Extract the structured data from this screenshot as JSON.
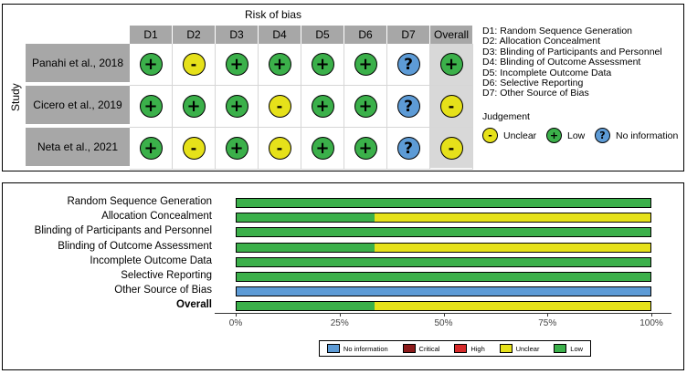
{
  "colors": {
    "low": "#3bb04a",
    "unclear": "#e6e11a",
    "no_information": "#5d9bd6",
    "high": "#d62a2a",
    "critical": "#8c1a1a",
    "header_gray": "#a7a7a7"
  },
  "traffic_light": {
    "title": "Risk of bias",
    "row_axis_label": "Study",
    "columns": [
      "D1",
      "D2",
      "D3",
      "D4",
      "D5",
      "D6",
      "D7",
      "Overall"
    ],
    "studies": [
      {
        "name": "Panahi et al., 2018",
        "judgements": [
          "low",
          "unclear",
          "low",
          "low",
          "low",
          "low",
          "no_information",
          "low"
        ]
      },
      {
        "name": "Cicero et al., 2019",
        "judgements": [
          "low",
          "low",
          "low",
          "unclear",
          "low",
          "low",
          "no_information",
          "unclear"
        ]
      },
      {
        "name": "Neta et al., 2021",
        "judgements": [
          "low",
          "unclear",
          "low",
          "unclear",
          "low",
          "low",
          "no_information",
          "unclear"
        ]
      }
    ],
    "symbols": {
      "low": "+",
      "unclear": "-",
      "no_information": "?"
    },
    "domain_legend": [
      "D1: Random Sequence Generation",
      "D2: Allocation Concealment",
      "D3: Blinding of Participants and Personnel",
      "D4: Blinding of Outcome Assessment",
      "D5: Incomplete Outcome Data",
      "D6: Selective Reporting",
      "D7: Other Source of Bias"
    ],
    "judgement_legend_title": "Judgement",
    "judgement_legend": [
      {
        "key": "unclear",
        "label": "Unclear"
      },
      {
        "key": "low",
        "label": "Low"
      },
      {
        "key": "no_information",
        "label": "No information"
      }
    ]
  },
  "chart_data": {
    "type": "bar",
    "stacked": true,
    "orientation": "horizontal",
    "categories": [
      "Random Sequence Generation",
      "Allocation Concealment",
      "Blinding of Participants and Personnel",
      "Blinding of Outcome Assessment",
      "Incomplete Outcome Data",
      "Selective Reporting",
      "Other Source of Bias",
      "Overall"
    ],
    "bold_categories": [
      "Overall"
    ],
    "series": [
      {
        "name": "Low",
        "key": "low",
        "values": [
          100,
          33.3,
          100,
          33.3,
          100,
          100,
          0,
          33.3
        ]
      },
      {
        "name": "Unclear",
        "key": "unclear",
        "values": [
          0,
          66.7,
          0,
          66.7,
          0,
          0,
          0,
          66.7
        ]
      },
      {
        "name": "No information",
        "key": "no_information",
        "values": [
          0,
          0,
          0,
          0,
          0,
          0,
          100,
          0
        ]
      }
    ],
    "xlim": [
      0,
      100
    ],
    "xticks": [
      "0%",
      "25%",
      "50%",
      "75%",
      "100%"
    ],
    "legend": [
      {
        "key": "no_information",
        "label": "No information"
      },
      {
        "key": "critical",
        "label": "Critical"
      },
      {
        "key": "high",
        "label": "High"
      },
      {
        "key": "unclear",
        "label": "Unclear"
      },
      {
        "key": "low",
        "label": "Low"
      }
    ],
    "legend_position": "bottom"
  }
}
